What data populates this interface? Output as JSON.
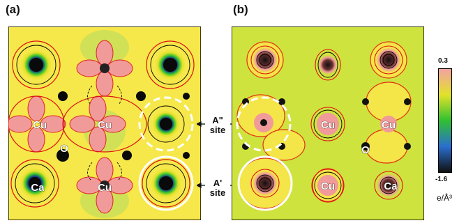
{
  "panels": {
    "a": {
      "label": "(a)"
    },
    "b": {
      "label": "(b)"
    }
  },
  "atom_labels": {
    "a": [
      "Cu",
      "Cu",
      "O",
      "Ca",
      "Cu"
    ],
    "b": [
      "Cu",
      "Cu",
      "O",
      "Cu",
      "Ca"
    ]
  },
  "site_labels": {
    "a_double": {
      "letter": "A\"",
      "word": "site"
    },
    "a_prime": {
      "letter": "A'",
      "word": "site"
    }
  },
  "colorbar": {
    "max": "0.3",
    "min": "-1.6",
    "unit": "e/Å³",
    "colors": [
      "#f2a2a2",
      "#e2e22a",
      "#30c030",
      "#2a6fd0",
      "#101010"
    ]
  }
}
